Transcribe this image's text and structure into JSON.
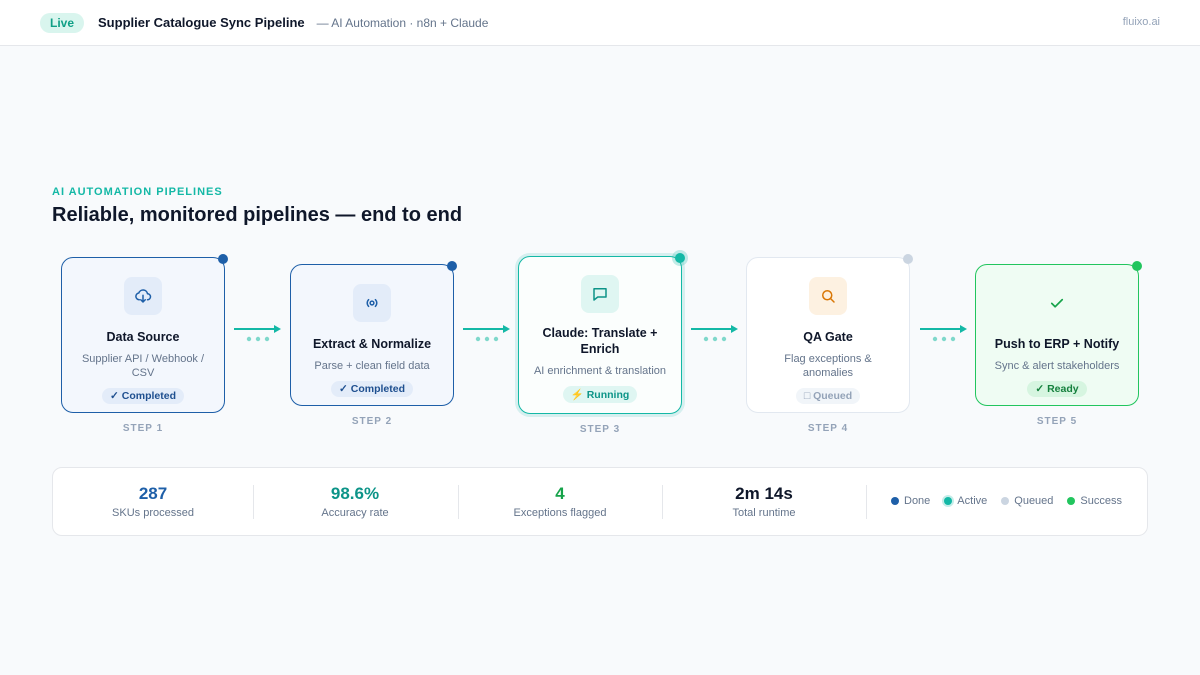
{
  "header": {
    "live_label": "Live",
    "title": "Supplier Catalogue Sync Pipeline",
    "subtitle": "— AI Automation · n8n + Claude",
    "brand": "fluixo.ai"
  },
  "section": {
    "eyebrow": "AI AUTOMATION PIPELINES",
    "headline": "Reliable, monitored pipelines — end to end"
  },
  "steps": [
    {
      "title": "Data Source",
      "desc": "Supplier API / Webhook / CSV",
      "badge": "✓ Completed",
      "status": "done",
      "icon": "download-cloud-icon",
      "label": "STEP 1"
    },
    {
      "title": "Extract & Normalize",
      "desc": "Parse + clean field data",
      "badge": "✓ Completed",
      "status": "done",
      "icon": "radio-signal-icon",
      "label": "STEP 2"
    },
    {
      "title": "Claude: Translate + Enrich",
      "desc": "AI enrichment & translation",
      "badge": "⚡ Running",
      "status": "active",
      "icon": "chat-bubble-icon",
      "label": "STEP 3"
    },
    {
      "title": "QA Gate",
      "desc": "Flag exceptions & anomalies",
      "badge": "□ Queued",
      "status": "queued",
      "icon": "search-icon",
      "label": "STEP 4"
    },
    {
      "title": "Push to ERP + Notify",
      "desc": "Sync & alert stakeholders",
      "badge": "✓ Ready",
      "status": "success",
      "icon": "check-icon",
      "label": "STEP 5"
    }
  ],
  "stats": [
    {
      "value": "287",
      "label": "SKUs processed",
      "color": "#1e5fa8"
    },
    {
      "value": "98.6%",
      "label": "Accuracy rate",
      "color": "#0d9488"
    },
    {
      "value": "4",
      "label": "Exceptions flagged",
      "color": "#16a34a"
    },
    {
      "value": "2m 14s",
      "label": "Total runtime",
      "color": "#0f172a"
    }
  ],
  "legend": [
    {
      "label": "Done",
      "color": "#1e5fa8"
    },
    {
      "label": "Active",
      "color": "#14b8a6"
    },
    {
      "label": "Queued",
      "color": "#cbd5e1"
    },
    {
      "label": "Success",
      "color": "#22c55e"
    }
  ],
  "colors": {
    "done": "#1e5fa8",
    "active": "#14b8a6",
    "queued": "#cbd5e1",
    "success": "#22c55e"
  }
}
